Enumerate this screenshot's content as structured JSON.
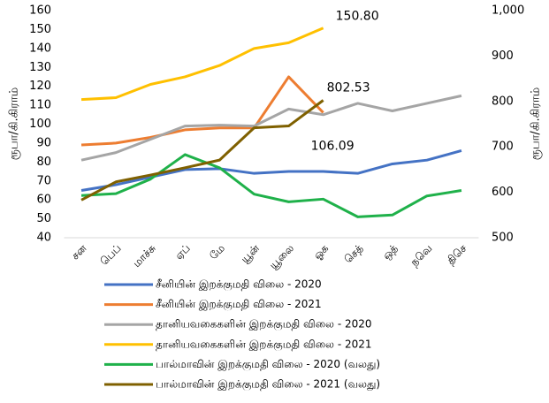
{
  "chart_data": {
    "type": "line",
    "categories": [
      "சன",
      "பெப்",
      "மாச்சு",
      "ஏப்",
      "மே",
      "யூன்",
      "யூலை",
      "ஓக",
      "செத்",
      "ஒத்",
      "நவெ",
      "திசெ"
    ],
    "ylabel": "ரூபா/கி.கிராம்",
    "y2label": "ரூபா/கி.கிராம்",
    "ylim": [
      40,
      160
    ],
    "yticks": [
      40,
      50,
      60,
      70,
      80,
      90,
      100,
      110,
      120,
      130,
      140,
      150,
      160
    ],
    "y2lim": [
      500,
      1000
    ],
    "y2ticks": [
      500,
      600,
      700,
      800,
      900,
      {
        "value": 1000,
        "label": "1,000"
      }
    ],
    "series": [
      {
        "name": "சீனியின் இறக்குமதி விலை - 2020",
        "color": "#4472c4",
        "values": [
          65,
          68,
          72,
          76,
          76.5,
          74,
          75,
          75,
          74,
          79,
          81,
          86
        ]
      },
      {
        "name": "சீனியின் இறக்குமதி விலை - 2021",
        "color": "#ed7d31",
        "values": [
          89,
          90,
          93,
          97,
          98,
          98,
          125,
          106.09,
          null,
          null,
          null,
          null
        ]
      },
      {
        "name": "தானியவகைகளின் இறக்குமதி விலை - 2020",
        "color": "#a5a5a5",
        "values": [
          81,
          85,
          92,
          99,
          99.5,
          99,
          108,
          105,
          111,
          107,
          111,
          115
        ]
      },
      {
        "name": "தானியவகைகளின் இறக்குமதி விலை - 2021",
        "color": "#ffc000",
        "values": [
          113,
          114,
          121,
          125,
          131,
          140,
          143,
          150.8,
          null,
          null,
          null,
          null
        ],
        "value_labels": [
          null,
          null,
          null,
          null,
          null,
          null,
          null,
          "150.80",
          null,
          null,
          null,
          null
        ]
      },
      {
        "name": "பால்மாவின் இறக்குமதி விலை - 2020 (வலது)",
        "color": "#1fb14a",
        "axis": "y2",
        "values": [
          593,
          597,
          629,
          683,
          654,
          596,
          579,
          585,
          546,
          550,
          592,
          604
        ]
      },
      {
        "name": "பால்மாவின் இறக்குமதி விலை - 2021 (வலது)",
        "color": "#7f6000",
        "axis": "y2",
        "values": [
          583,
          623,
          638,
          654,
          671,
          742,
          746,
          802.53,
          null,
          null,
          null,
          null
        ]
      }
    ],
    "labeled_points": [
      [
        1,
        7
      ],
      [
        3,
        7
      ],
      [
        5,
        7
      ]
    ]
  }
}
